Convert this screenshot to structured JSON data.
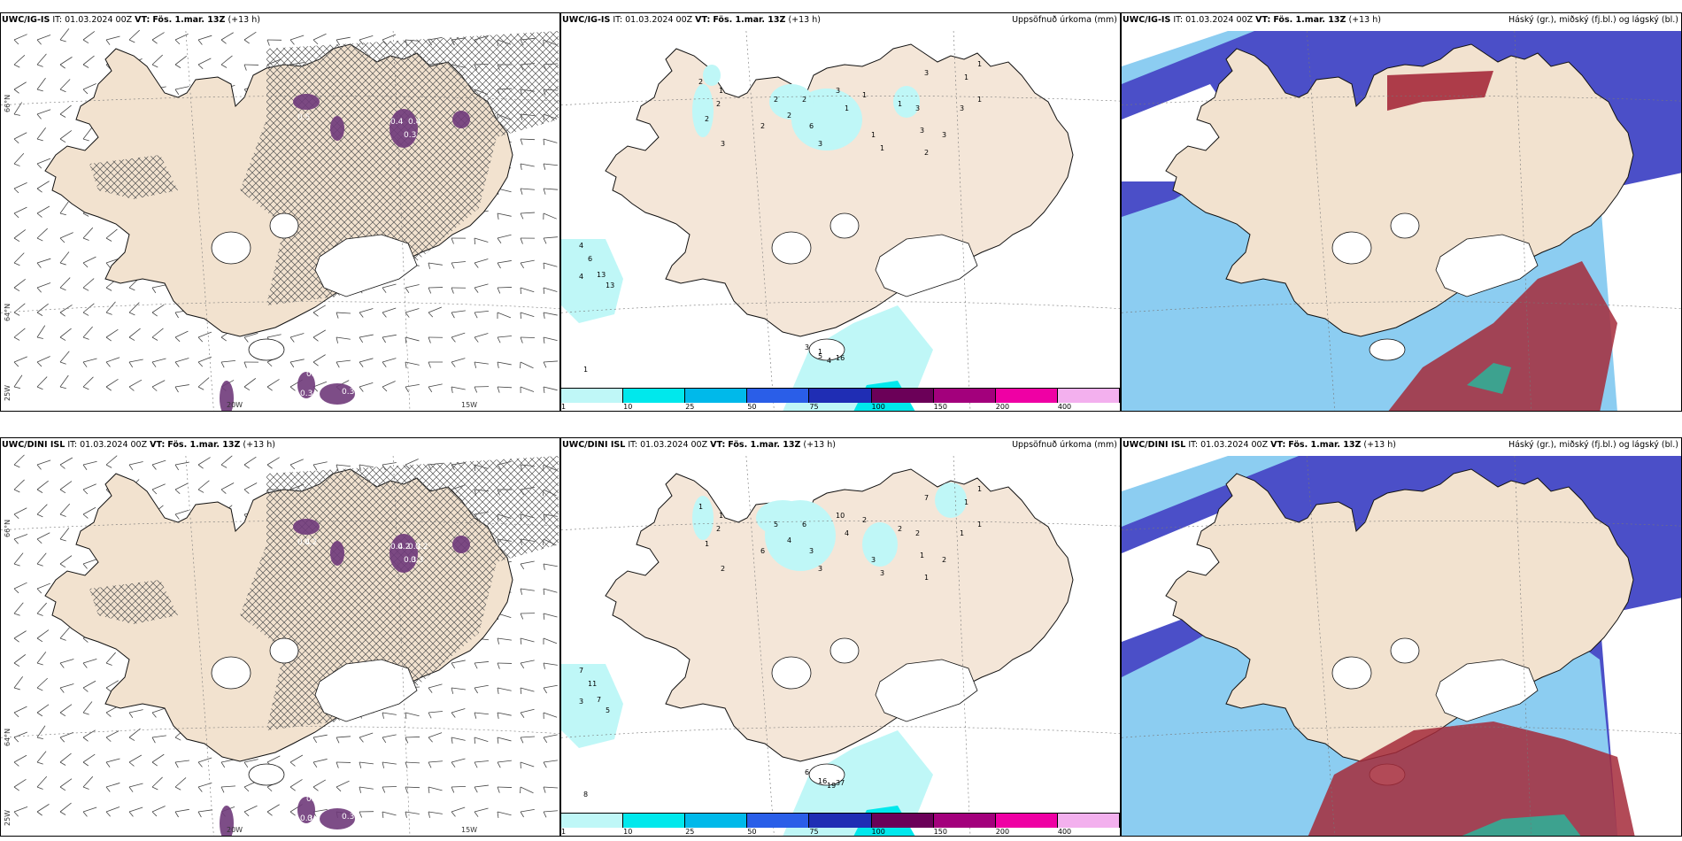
{
  "panels": [
    {
      "id": "p1",
      "model": "UWC/IG-IS",
      "it": "IT: 01.03.2024 00Z",
      "vt_label": "VT:",
      "vt": "Fös. 1.mar. 13Z",
      "lead": "(+13 h)",
      "right": "",
      "kind": "wind"
    },
    {
      "id": "p2",
      "model": "UWC/IG-IS",
      "it": "IT: 01.03.2024 00Z",
      "vt_label": "VT:",
      "vt": "Fös. 1.mar. 13Z",
      "lead": "(+13 h)",
      "right": "Uppsöfnuð úrkoma (mm)",
      "kind": "precip"
    },
    {
      "id": "p3",
      "model": "UWC/IG-IS",
      "it": "IT: 01.03.2024 00Z",
      "vt_label": "VT:",
      "vt": "Fös. 1.mar. 13Z",
      "lead": "(+13 h)",
      "right": "Háský (gr.), miðský (fj.bl.) og lágský (bl.)",
      "kind": "cloud"
    },
    {
      "id": "p4",
      "model": "UWC/DINI ISL",
      "it": "IT: 01.03.2024 00Z",
      "vt_label": "VT:",
      "vt": "Fös. 1.mar. 13Z",
      "lead": "(+13 h)",
      "right": "",
      "kind": "wind"
    },
    {
      "id": "p5",
      "model": "UWC/DINI ISL",
      "it": "IT: 01.03.2024 00Z",
      "vt_label": "VT:",
      "vt": "Fös. 1.mar. 13Z",
      "lead": "(+13 h)",
      "right": "Uppsöfnuð úrkoma (mm)",
      "kind": "precip"
    },
    {
      "id": "p6",
      "model": "UWC/DINI ISL",
      "it": "IT: 01.03.2024 00Z",
      "vt_label": "VT:",
      "vt": "Fös. 1.mar. 13Z",
      "lead": "(+13 h)",
      "right": "Háský (gr.), miðský (fj.bl.) og lágský (bl.)",
      "kind": "cloud"
    }
  ],
  "colorbar": {
    "labels": [
      "1",
      "10",
      "25",
      "50",
      "75",
      "100",
      "150",
      "200",
      "400"
    ],
    "colors": [
      "#bff7f7",
      "#00e8ec",
      "#00b9ea",
      "#2a5ee8",
      "#1f2db4",
      "#6b0058",
      "#a3007c",
      "#ef00a4",
      "#f3b0ee"
    ]
  },
  "axis_labels": {
    "lat_66": "66°N",
    "lat_64": "64°N",
    "lat_25": "25W",
    "lon_20": "20W",
    "lon_15": "15W"
  },
  "precip_numbers": {
    "p2": [
      "2",
      "1",
      "2",
      "2",
      "3",
      "2",
      "2",
      "2",
      "2",
      "6",
      "3",
      "3",
      "1",
      "1",
      "1",
      "1",
      "1",
      "3",
      "3",
      "2",
      "3",
      "3",
      "1",
      "1",
      "1",
      "3",
      "4",
      "6",
      "13",
      "13",
      "4",
      "1",
      "3",
      "5",
      "4",
      "16",
      "1"
    ],
    "p5": [
      "1",
      "1",
      "2",
      "1",
      "2",
      "6",
      "5",
      "4",
      "6",
      "3",
      "3",
      "10",
      "4",
      "2",
      "3",
      "3",
      "2",
      "2",
      "1",
      "1",
      "2",
      "1",
      "1",
      "1",
      "1",
      "7",
      "7",
      "11",
      "7",
      "5",
      "3",
      "8",
      "6",
      "16",
      "19",
      "37"
    ]
  },
  "wind_numbers": {
    "p1": [
      "0.4",
      "0.4",
      "0.3",
      "0.5",
      "0.3",
      "0.3",
      "0.4",
      "0.3"
    ],
    "p4": [
      "0.4",
      "0.3",
      "0.3",
      "0.4",
      "0.4",
      "0.3",
      "0.5",
      "0.3",
      "0.2",
      "0.2",
      "0.3",
      "0.2",
      "0.5",
      "0.6"
    ]
  },
  "colors": {
    "land": "#f2e2cf",
    "sea_wind": "#ffffff",
    "ice": "#ffffff",
    "hatch": "#6a6a6a",
    "purple": "#6f3a7a",
    "cloud_high": "#4b4fc8",
    "cloud_red": "#a52a3a",
    "cloud_light": "#7fc8f0"
  }
}
